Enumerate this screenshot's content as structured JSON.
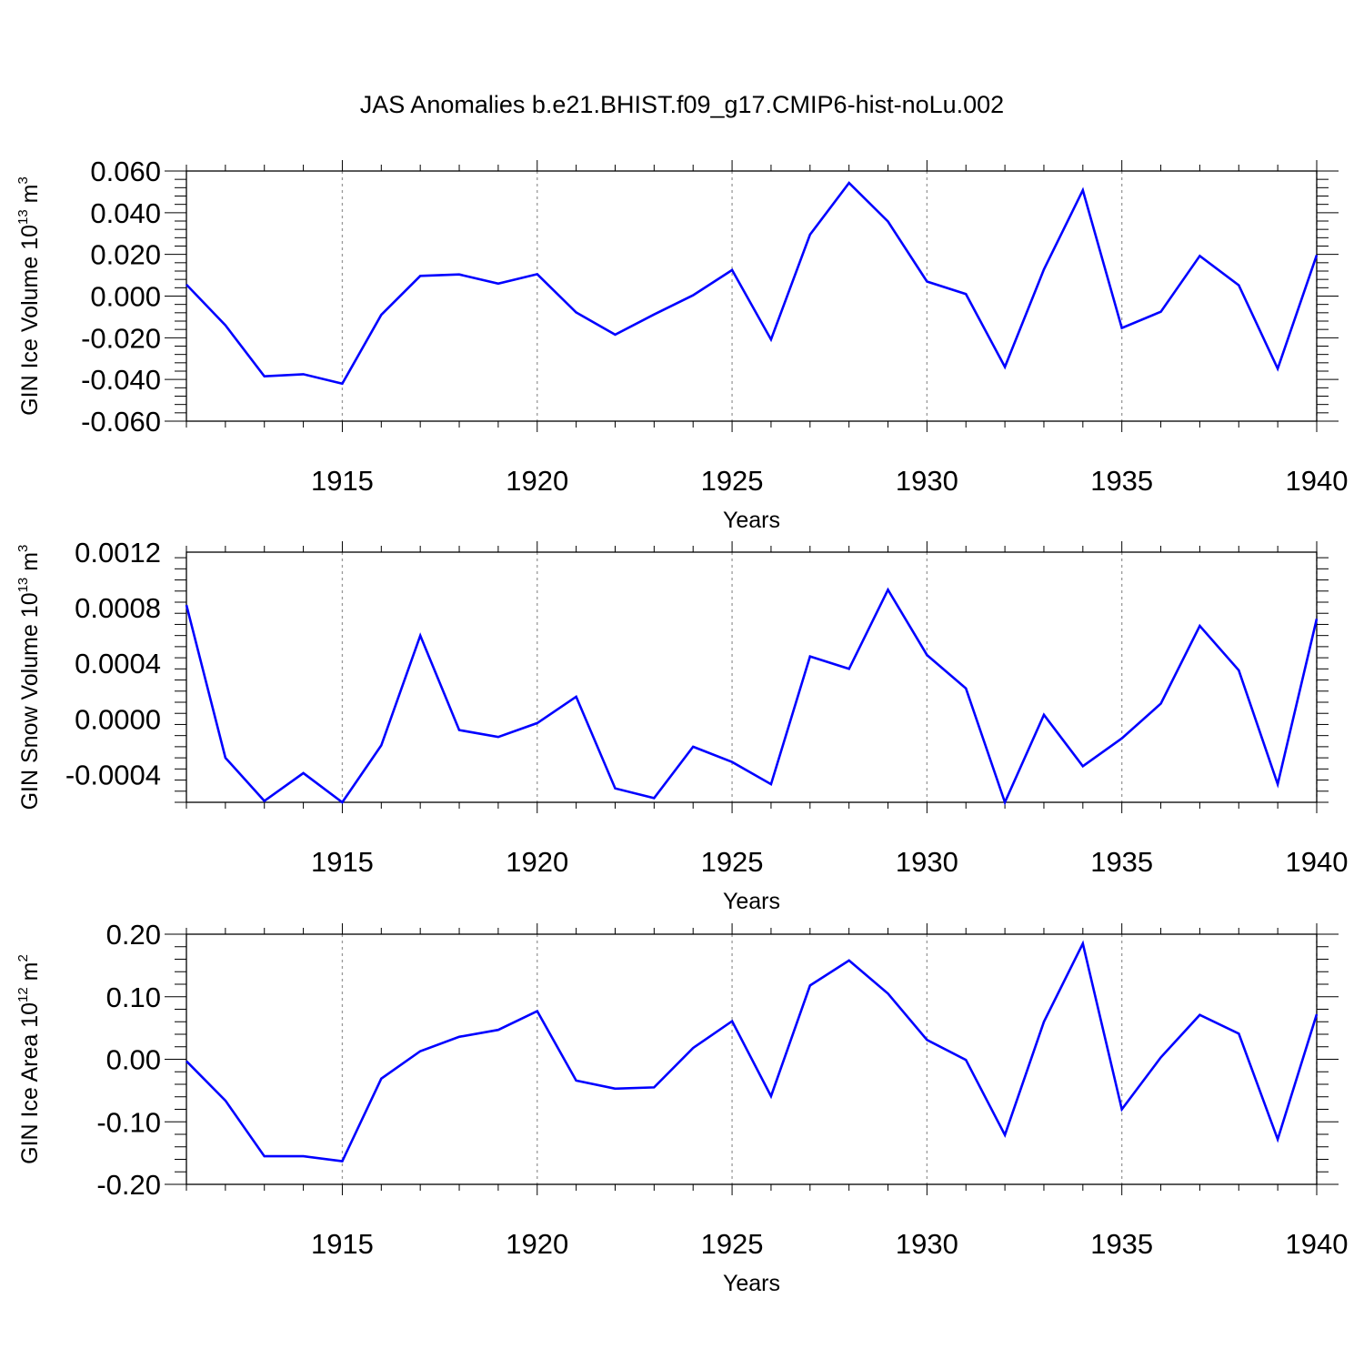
{
  "chart_data": {
    "type": "line",
    "title": "JAS Anomalies b.e21.BHIST.f09_g17.CMIP6-hist-noLu.002",
    "line_color": "#0000ff",
    "x": [
      1911,
      1912,
      1913,
      1914,
      1915,
      1916,
      1917,
      1918,
      1919,
      1920,
      1921,
      1922,
      1923,
      1924,
      1925,
      1926,
      1927,
      1928,
      1929,
      1930,
      1931,
      1932,
      1933,
      1934,
      1935,
      1936,
      1937,
      1938,
      1939,
      1940
    ],
    "xlim": [
      1911,
      1940
    ],
    "xticks": [
      1915,
      1920,
      1925,
      1930,
      1935,
      1940
    ],
    "xtick_labels": [
      "1915",
      "1920",
      "1925",
      "1930",
      "1935",
      "1940"
    ],
    "panels": [
      {
        "ylabel": "GIN Ice Volume 10",
        "ylabel_exp": "13",
        "ylabel_unit": "m",
        "ylabel_unit_exp": "3",
        "xlabel": "Years",
        "ylim": [
          -0.06,
          0.06
        ],
        "yticks": [
          -0.06,
          -0.04,
          -0.02,
          0.0,
          0.02,
          0.04,
          0.06
        ],
        "ytick_labels": [
          "-0.060",
          "-0.040",
          "-0.020",
          "0.000",
          "0.020",
          "0.040",
          "0.060"
        ],
        "values": [
          0.0055,
          -0.014,
          -0.0385,
          -0.0375,
          -0.042,
          -0.009,
          0.0097,
          0.0104,
          0.006,
          0.0105,
          -0.0078,
          -0.0185,
          -0.0088,
          0.0004,
          0.0125,
          -0.0208,
          0.0295,
          0.0543,
          0.0358,
          0.007,
          0.001,
          -0.034,
          0.0128,
          0.0508,
          -0.0153,
          -0.0075,
          0.0193,
          0.0052,
          -0.0348,
          0.0197
        ]
      },
      {
        "ylabel": "GIN Snow Volume 10",
        "ylabel_exp": "13",
        "ylabel_unit": "m",
        "ylabel_unit_exp": "3",
        "xlabel": "Years",
        "ylim": [
          -0.0006,
          0.0012
        ],
        "yticks": [
          -0.0004,
          0.0,
          0.0004,
          0.0008,
          0.0012
        ],
        "ytick_labels": [
          "-0.0004",
          "0.0000",
          "0.0004",
          "0.0008",
          "0.0012"
        ],
        "values": [
          0.00082,
          -0.00028,
          -0.00059,
          -0.00039,
          -0.0006,
          -0.00019,
          0.0006,
          -8e-05,
          -0.00013,
          -3e-05,
          0.00016,
          -0.0005,
          -0.00057,
          -0.0002,
          -0.00031,
          -0.00047,
          0.00045,
          0.00036,
          0.00093,
          0.00046,
          0.00022,
          -0.0006,
          3e-05,
          -0.00034,
          -0.00014,
          0.00011,
          0.00067,
          0.00035,
          -0.00047,
          0.00072
        ]
      },
      {
        "ylabel": "GIN Ice Area 10",
        "ylabel_exp": "12",
        "ylabel_unit": "m",
        "ylabel_unit_exp": "2",
        "xlabel": "Years",
        "ylim": [
          -0.2,
          0.2
        ],
        "yticks": [
          -0.2,
          -0.1,
          0.0,
          0.1,
          0.2
        ],
        "ytick_labels": [
          "-0.20",
          "-0.10",
          "0.00",
          "0.10",
          "0.20"
        ],
        "values": [
          -0.003,
          -0.066,
          -0.155,
          -0.155,
          -0.163,
          -0.031,
          0.013,
          0.036,
          0.047,
          0.077,
          -0.034,
          -0.047,
          -0.045,
          0.018,
          0.061,
          -0.059,
          0.118,
          0.158,
          0.105,
          0.031,
          -0.001,
          -0.121,
          0.06,
          0.185,
          -0.08,
          0.003,
          0.071,
          0.041,
          -0.128,
          0.072
        ]
      }
    ]
  }
}
